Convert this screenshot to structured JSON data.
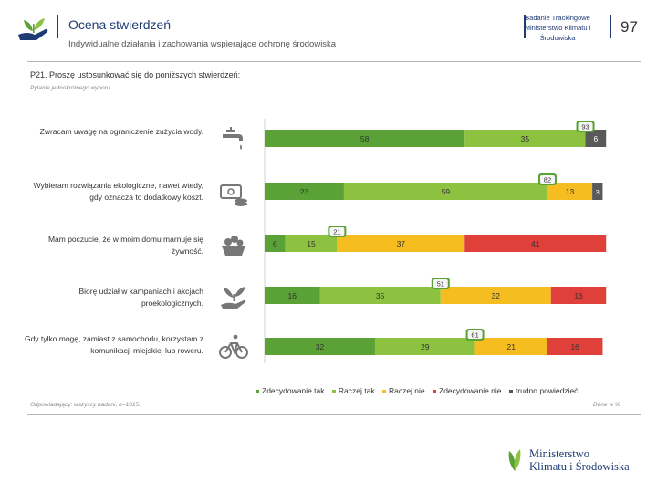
{
  "header": {
    "title": "Ocena stwierdzeń",
    "subtitle": "Indywidualne działania i zachowania wspierające ochronę środowiska",
    "study_name": "Badanie Trackingowe Ministerstwo Klimatu i Środowiska",
    "page_number": "97"
  },
  "question": {
    "text": "P21. Proszę ustosunkować się do poniższych stwierdzeń:",
    "note": "Pytanie jednokrotnego wyboru."
  },
  "footer": {
    "base": "Odpowiadający: wszyscy badani, n=1015.",
    "unit": "Dane w %"
  },
  "logo": {
    "line1": "Ministerstwo",
    "line2": "Klimatu i Środowiska"
  },
  "colors": {
    "strongly_agree": "#5aa136",
    "agree": "#8cc23f",
    "disagree": "#f5bd1f",
    "strongly_disagree": "#e0403a",
    "dont_know": "#595959",
    "accent": "#1f3b73"
  },
  "chart_data": {
    "type": "bar",
    "orientation": "horizontal-stacked",
    "title": "P21. Proszę ustosunkować się do poniższych stwierdzeń:",
    "categories": [
      "Zwracam uwagę na ograniczenie zużycia wody.",
      "Wybieram rozwiązania ekologiczne, nawet wtedy, gdy oznacza to dodatkowy koszt.",
      "Mam poczucie, że w moim domu marnuje się żywność.",
      "Biorę udział w kampaniach i akcjach proekologicznych.",
      "Gdy tylko mogę, zamiast z samochodu, korzystam z komunikacji miejskiej lub roweru."
    ],
    "category_icons": [
      "faucet-icon",
      "money-icon",
      "food-basket-icon",
      "hand-plant-icon",
      "bicycle-icon"
    ],
    "series": [
      {
        "name": "Zdecydowanie tak",
        "values": [
          58,
          23,
          6,
          16,
          32
        ]
      },
      {
        "name": "Raczej tak",
        "values": [
          35,
          59,
          15,
          35,
          29
        ]
      },
      {
        "name": "Raczej nie",
        "values": [
          null,
          13,
          37,
          32,
          21
        ]
      },
      {
        "name": "Zdecydowanie nie",
        "values": [
          null,
          null,
          41,
          16,
          16
        ]
      },
      {
        "name": "trudno powiedzieć",
        "values": [
          6,
          3,
          null,
          null,
          null
        ]
      }
    ],
    "totals_agree": [
      93,
      82,
      21,
      51,
      61
    ],
    "legend": [
      "Zdecydowanie tak",
      "Raczej tak",
      "Raczej nie",
      "Zdecydowanie nie",
      "trudno powiedzieć"
    ],
    "xlim": [
      0,
      100
    ],
    "legend_position": "bottom"
  }
}
